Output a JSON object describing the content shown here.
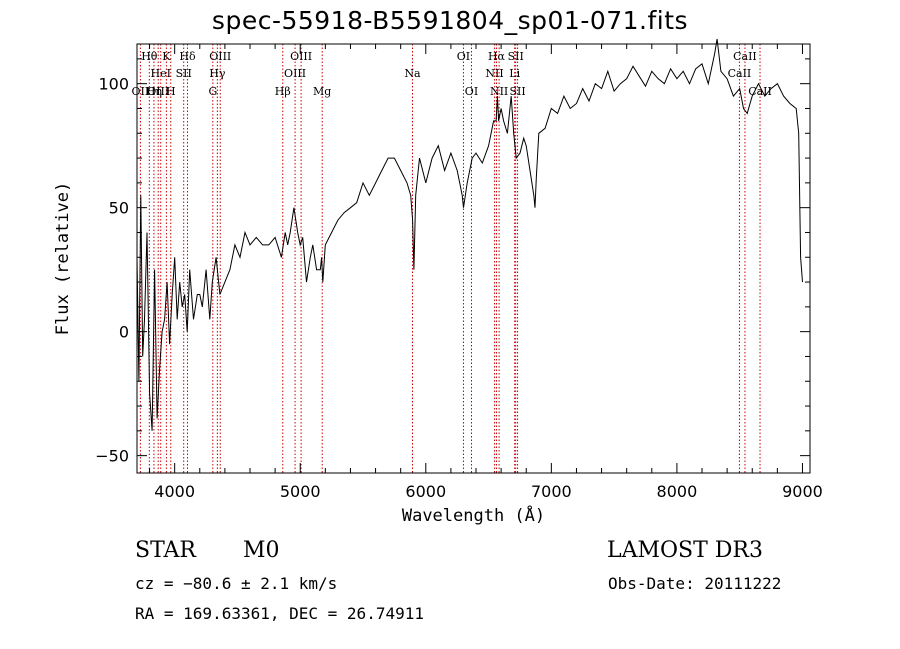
{
  "chart_data": {
    "type": "line",
    "title": "spec-55918-B5591804_sp01-071.fits",
    "xlabel": "Wavelength (Å)",
    "ylabel": "Flux (relative)",
    "xlim": [
      3700,
      9060
    ],
    "ylim": [
      -57,
      116
    ],
    "xticks": [
      4000,
      5000,
      6000,
      7000,
      8000,
      9000
    ],
    "yticks": [
      -50,
      0,
      50,
      100
    ],
    "series": [
      {
        "name": "flux",
        "x": [
          3700,
          3715,
          3730,
          3745,
          3760,
          3780,
          3800,
          3820,
          3840,
          3860,
          3880,
          3900,
          3920,
          3940,
          3960,
          3980,
          4000,
          4020,
          4040,
          4060,
          4080,
          4100,
          4120,
          4150,
          4180,
          4200,
          4220,
          4250,
          4280,
          4300,
          4330,
          4360,
          4400,
          4440,
          4480,
          4520,
          4560,
          4600,
          4650,
          4700,
          4750,
          4800,
          4850,
          4880,
          4900,
          4920,
          4950,
          4980,
          5000,
          5020,
          5050,
          5080,
          5100,
          5130,
          5160,
          5170,
          5180,
          5200,
          5250,
          5300,
          5350,
          5400,
          5450,
          5500,
          5550,
          5600,
          5650,
          5700,
          5750,
          5800,
          5850,
          5880,
          5895,
          5905,
          5920,
          5950,
          6000,
          6050,
          6100,
          6150,
          6200,
          6250,
          6290,
          6300,
          6330,
          6370,
          6400,
          6450,
          6500,
          6540,
          6560,
          6570,
          6580,
          6600,
          6620,
          6650,
          6680,
          6700,
          6720,
          6750,
          6780,
          6800,
          6830,
          6860,
          6870,
          6880,
          6900,
          6950,
          7000,
          7050,
          7100,
          7150,
          7200,
          7250,
          7300,
          7350,
          7400,
          7450,
          7500,
          7550,
          7600,
          7650,
          7700,
          7750,
          7800,
          7850,
          7900,
          7950,
          8000,
          8050,
          8100,
          8150,
          8200,
          8250,
          8300,
          8320,
          8350,
          8400,
          8450,
          8500,
          8530,
          8560,
          8600,
          8650,
          8700,
          8750,
          8800,
          8850,
          8900,
          8950,
          8970,
          8985,
          9000
        ],
        "y": [
          30,
          -20,
          55,
          -10,
          5,
          40,
          -25,
          -40,
          25,
          -35,
          -15,
          0,
          5,
          20,
          -5,
          15,
          30,
          5,
          20,
          10,
          15,
          0,
          25,
          5,
          15,
          15,
          10,
          25,
          5,
          20,
          30,
          15,
          20,
          25,
          35,
          30,
          40,
          35,
          38,
          35,
          35,
          38,
          30,
          40,
          35,
          40,
          50,
          40,
          35,
          38,
          20,
          30,
          35,
          25,
          25,
          30,
          20,
          35,
          40,
          45,
          48,
          50,
          52,
          60,
          55,
          60,
          65,
          70,
          70,
          65,
          60,
          55,
          45,
          25,
          55,
          70,
          60,
          70,
          75,
          65,
          72,
          65,
          55,
          50,
          60,
          70,
          72,
          68,
          75,
          85,
          85,
          95,
          85,
          90,
          85,
          80,
          95,
          80,
          70,
          72,
          78,
          75,
          65,
          55,
          50,
          62,
          80,
          82,
          90,
          88,
          95,
          90,
          92,
          98,
          93,
          100,
          98,
          105,
          97,
          100,
          102,
          107,
          103,
          99,
          105,
          102,
          100,
          106,
          102,
          105,
          100,
          106,
          108,
          100,
          112,
          118,
          105,
          102,
          95,
          98,
          90,
          88,
          95,
          100,
          95,
          98,
          100,
          95,
          92,
          90,
          80,
          30,
          20
        ]
      }
    ],
    "line_labels": [
      {
        "text": "OII",
        "wl": 3727,
        "row": 3
      },
      {
        "text": "Hθ",
        "wl": 3798,
        "row": 1
      },
      {
        "text": "OIII",
        "wl": 3869,
        "row": 3
      },
      {
        "text": "HeI",
        "wl": 3889,
        "row": 2
      },
      {
        "text": "K",
        "wl": 3934,
        "row": 1
      },
      {
        "text": "Hη",
        "wl": 3835,
        "row": 3
      },
      {
        "text": "H",
        "wl": 3969,
        "row": 3
      },
      {
        "text": "SII",
        "wl": 4072,
        "row": 2
      },
      {
        "text": "Hδ",
        "wl": 4102,
        "row": 1
      },
      {
        "text": "OIII",
        "wl": 4363,
        "row": 1
      },
      {
        "text": "Hγ",
        "wl": 4340,
        "row": 2
      },
      {
        "text": "G",
        "wl": 4304,
        "row": 3
      },
      {
        "text": "Hβ",
        "wl": 4861,
        "row": 3
      },
      {
        "text": "OIII",
        "wl": 5007,
        "row": 1
      },
      {
        "text": "OIII",
        "wl": 4959,
        "row": 2
      },
      {
        "text": "Mg",
        "wl": 5175,
        "row": 3
      },
      {
        "text": "Na",
        "wl": 5894,
        "row": 2
      },
      {
        "text": "OI",
        "wl": 6300,
        "row": 1
      },
      {
        "text": "OI",
        "wl": 6364,
        "row": 3
      },
      {
        "text": "Hα",
        "wl": 6563,
        "row": 1
      },
      {
        "text": "SII",
        "wl": 6716,
        "row": 1
      },
      {
        "text": "NII",
        "wl": 6548,
        "row": 2
      },
      {
        "text": "Li",
        "wl": 6708,
        "row": 2
      },
      {
        "text": "NII",
        "wl": 6584,
        "row": 3
      },
      {
        "text": "SII",
        "wl": 6731,
        "row": 3
      },
      {
        "text": "CaII",
        "wl": 8542,
        "row": 1
      },
      {
        "text": "CaII",
        "wl": 8498,
        "row": 2
      },
      {
        "text": "CaII",
        "wl": 8662,
        "row": 3
      }
    ],
    "marker_lines": [
      3727,
      3798,
      3835,
      3869,
      3889,
      3934,
      3969,
      4072,
      4102,
      4304,
      4340,
      4363,
      4861,
      4959,
      5007,
      5175,
      5894,
      6300,
      6364,
      6548,
      6563,
      6584,
      6708,
      6716,
      6731,
      8498,
      8542,
      8662
    ],
    "marker_color": "#cc0000"
  },
  "info": {
    "object_type": "STAR",
    "subclass": "M0",
    "survey": "LAMOST DR3",
    "cz": "cz = −80.6 ± 2.1 km/s",
    "obs_date": "Obs-Date: 20111222",
    "coords": "RA = 169.63361, DEC =  26.74911"
  }
}
